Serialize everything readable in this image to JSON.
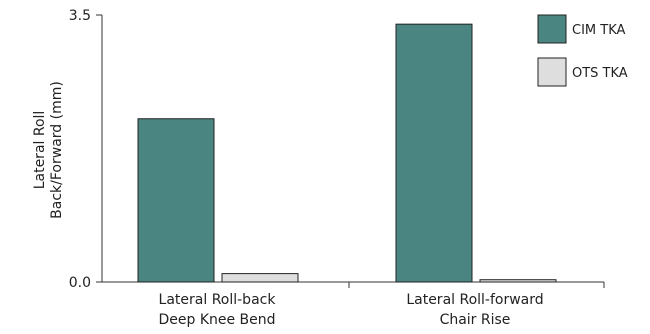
{
  "chart_data": {
    "type": "bar",
    "title": "",
    "xlabel": "",
    "ylabel": [
      "Lateral Roll",
      "Back/Forward (mm)"
    ],
    "ylim": [
      0,
      3.5
    ],
    "yticks": [
      "0.0",
      "3.5"
    ],
    "categories": [
      [
        "Lateral Roll-back",
        "Deep Knee Bend"
      ],
      [
        "Lateral Roll-forward",
        "Chair Rise"
      ]
    ],
    "series": [
      {
        "name": "CIM TKA",
        "color": "#4a8582",
        "values": [
          2.14,
          3.38
        ]
      },
      {
        "name": "OTS TKA",
        "color": "#dedede",
        "values": [
          0.11,
          0.03
        ]
      }
    ],
    "legend_position": "top-right",
    "grid": false
  }
}
